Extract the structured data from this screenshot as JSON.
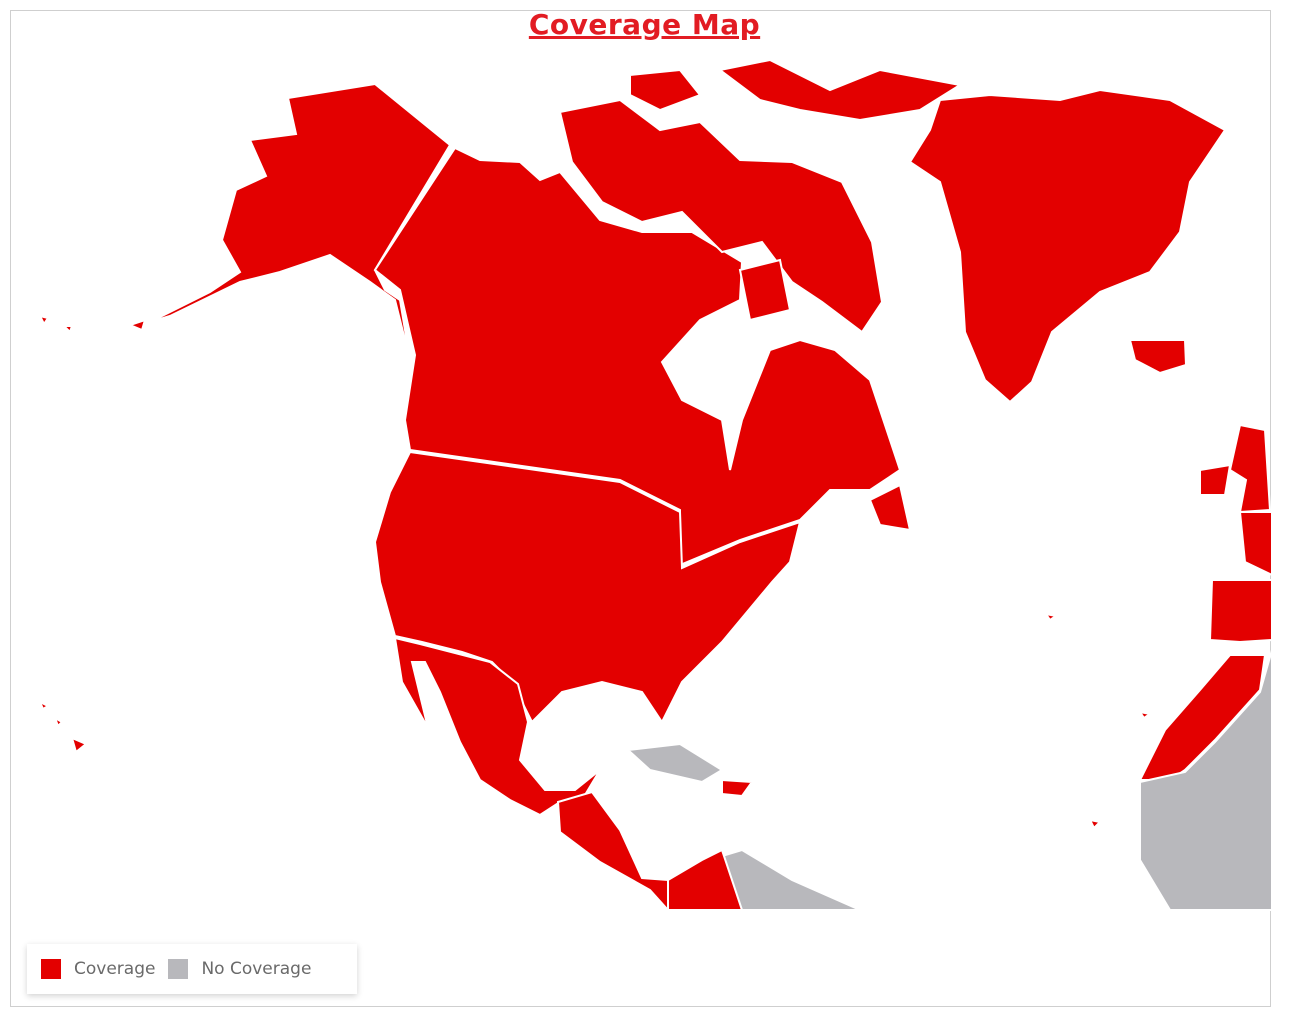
{
  "title": "Coverage Map",
  "colors": {
    "coverage": "#e30000",
    "no_coverage": "#b8b8bc",
    "border": "#ffffff"
  },
  "legend": [
    {
      "label": "Coverage",
      "color": "#e30000"
    },
    {
      "label": "No Coverage",
      "color": "#b8b8bc"
    }
  ]
}
